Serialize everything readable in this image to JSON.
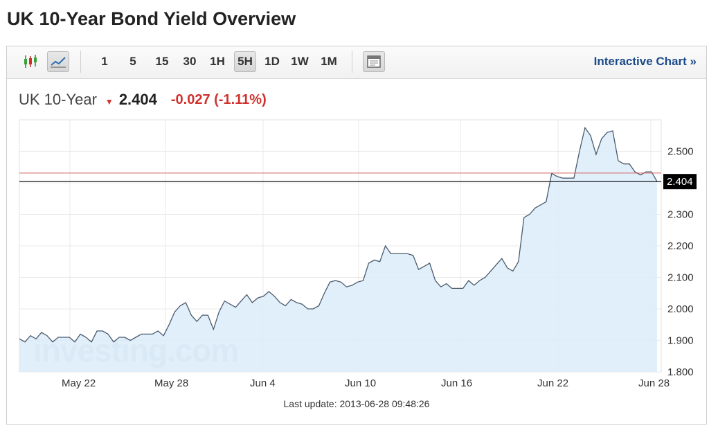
{
  "page_title": "UK 10-Year Bond Yield Overview",
  "toolbar": {
    "chart_type_icons": [
      {
        "name": "candlestick-chart-icon",
        "selected": false
      },
      {
        "name": "line-chart-icon",
        "selected": true
      }
    ],
    "timeframes": [
      {
        "label": "1",
        "selected": false
      },
      {
        "label": "5",
        "selected": false
      },
      {
        "label": "15",
        "selected": false
      },
      {
        "label": "30",
        "selected": false
      },
      {
        "label": "1H",
        "selected": false
      },
      {
        "label": "5H",
        "selected": true
      },
      {
        "label": "1D",
        "selected": false
      },
      {
        "label": "1W",
        "selected": false
      },
      {
        "label": "1M",
        "selected": false
      }
    ],
    "layout_icon": "chart-layout-icon",
    "interactive_chart_label": "Interactive Chart",
    "interactive_chart_arrow": "»"
  },
  "quote": {
    "name": "UK 10-Year",
    "arrow": "▼",
    "price": "2.404",
    "change": "-0.027 (-1.11%)"
  },
  "last_update": "Last update: 2013-06-28 09:48:26",
  "watermark": "investing.com",
  "colors": {
    "line": "#4a5a6c",
    "area": "#dcecfa",
    "prev_close_line": "#d46060",
    "current_line": "#000000",
    "down": "#d0312d",
    "link": "#1a4a8a"
  },
  "chart_data": {
    "type": "area",
    "title": "",
    "xlabel": "",
    "ylabel": "",
    "ylim": [
      1.8,
      2.6
    ],
    "y_ticks": [
      "1.800",
      "1.900",
      "2.000",
      "2.100",
      "2.200",
      "2.300",
      "2.400",
      "2.500"
    ],
    "x_ticks": [
      "May 22",
      "May 28",
      "Jun 4",
      "Jun 10",
      "Jun 16",
      "Jun 22",
      "Jun 28"
    ],
    "reference_line": 2.431,
    "current_value": 2.404,
    "current_label": "2.404",
    "grid": true,
    "series": [
      {
        "values": [
          1.905,
          1.895,
          1.915,
          1.905,
          1.925,
          1.915,
          1.895,
          1.91,
          1.91,
          1.91,
          1.895,
          1.92,
          1.91,
          1.895,
          1.93,
          1.93,
          1.92,
          1.895,
          1.91,
          1.91,
          1.9,
          1.91,
          1.92,
          1.92,
          1.92,
          1.93,
          1.915,
          1.95,
          1.99,
          2.01,
          2.02,
          1.98,
          1.96,
          1.98,
          1.98,
          1.935,
          1.99,
          2.025,
          2.015,
          2.005,
          2.025,
          2.045,
          2.02,
          2.035,
          2.04,
          2.055,
          2.04,
          2.02,
          2.01,
          2.03,
          2.02,
          2.015,
          2.0,
          2.0,
          2.01,
          2.05,
          2.085,
          2.09,
          2.085,
          2.07,
          2.075,
          2.085,
          2.09,
          2.145,
          2.155,
          2.15,
          2.2,
          2.175,
          2.175,
          2.175,
          2.175,
          2.17,
          2.125,
          2.135,
          2.145,
          2.09,
          2.07,
          2.08,
          2.065,
          2.065,
          2.065,
          2.09,
          2.075,
          2.09,
          2.1,
          2.12,
          2.14,
          2.16,
          2.13,
          2.12,
          2.15,
          2.29,
          2.3,
          2.32,
          2.33,
          2.34,
          2.43,
          2.42,
          2.415,
          2.415,
          2.415,
          2.5,
          2.575,
          2.55,
          2.49,
          2.54,
          2.56,
          2.565,
          2.47,
          2.46,
          2.46,
          2.435,
          2.425,
          2.435,
          2.435,
          2.404
        ]
      }
    ]
  }
}
